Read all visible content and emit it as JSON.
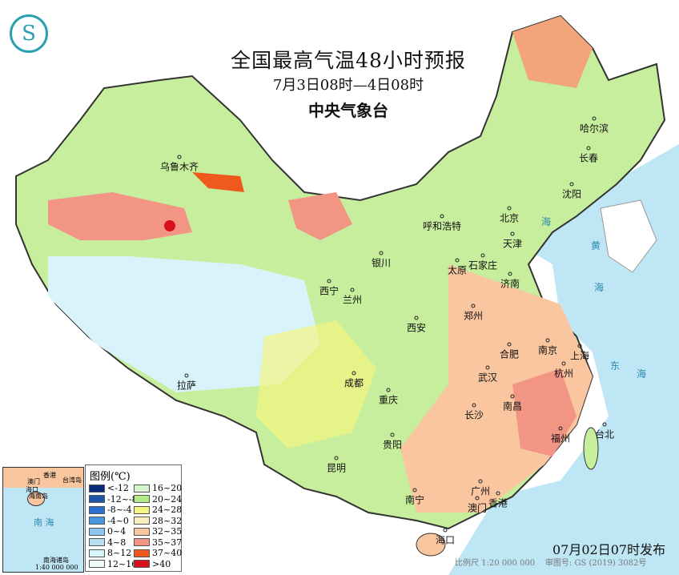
{
  "title": "全国最高气温48小时预报",
  "subtitle": "7月3日08时—4日08时",
  "agency": "中央气象台",
  "legend": {
    "title": "图例(℃)",
    "items": [
      {
        "label": "<-12",
        "color": "#0a2a7a"
      },
      {
        "label": "16~20",
        "color": "#d6f5d0"
      },
      {
        "label": "-12~-8",
        "color": "#1f55a8"
      },
      {
        "label": "20~24",
        "color": "#b5ec8a"
      },
      {
        "label": "-8~-4",
        "color": "#2d6fd0"
      },
      {
        "label": "24~28",
        "color": "#f3f580"
      },
      {
        "label": "-4~0",
        "color": "#4a95e0"
      },
      {
        "label": "28~32",
        "color": "#fbeec0"
      },
      {
        "label": "0~4",
        "color": "#8cc6f0"
      },
      {
        "label": "32~35",
        "color": "#f9c6a0"
      },
      {
        "label": "4~8",
        "color": "#b8e0f2"
      },
      {
        "label": "35~37",
        "color": "#f39585"
      },
      {
        "label": "8~12",
        "color": "#d8f4fa"
      },
      {
        "label": "37~40",
        "color": "#ef5a1c"
      },
      {
        "label": "12~16",
        "color": "#f2fcf5"
      },
      {
        "label": ">40",
        "color": "#d8101a"
      }
    ]
  },
  "cities": [
    "乌鲁木齐",
    "哈尔滨",
    "长春",
    "沈阳",
    "呼和浩特",
    "北京",
    "天津",
    "银川",
    "石家庄",
    "太原",
    "济南",
    "西宁",
    "兰州",
    "郑州",
    "西安",
    "合肥",
    "南京",
    "上海",
    "成都",
    "武汉",
    "杭州",
    "拉萨",
    "重庆",
    "长沙",
    "南昌",
    "福州",
    "台北",
    "贵阳",
    "昆明",
    "广州",
    "南宁",
    "澳门",
    "香港",
    "海口"
  ],
  "seas": [
    "黄",
    "海",
    "东",
    "海",
    "海"
  ],
  "inset": {
    "labels": [
      "香港",
      "澳门",
      "台湾岛",
      "海口",
      "海南岛",
      "南 海",
      "南海诸岛"
    ],
    "scale": "1:40 000 000"
  },
  "issued": "07月02日07时发布",
  "scale": "比例尺 1:20 000 000",
  "map_review": "审图号: GS (2019) 3082号",
  "colors": {
    "sea": "#bfe6f5",
    "land_default": "#c6ee9c"
  }
}
